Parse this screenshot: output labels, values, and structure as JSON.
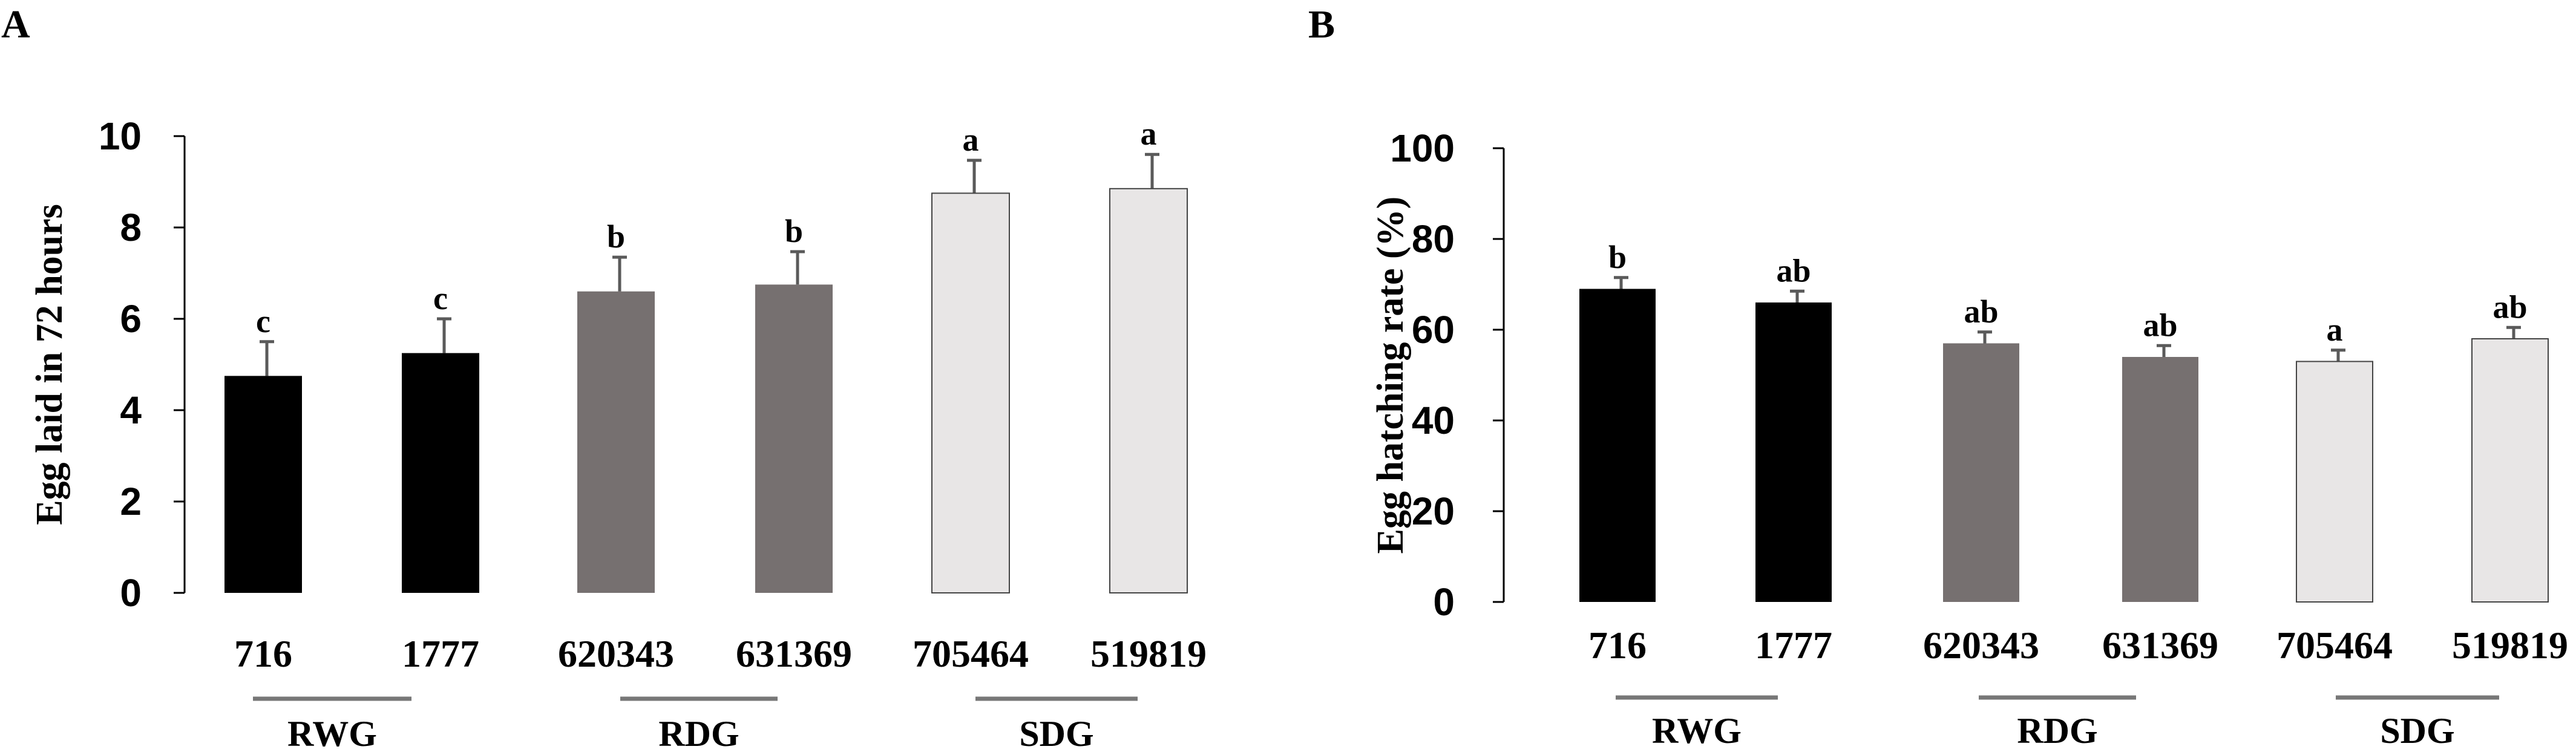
{
  "panels": [
    {
      "panel_letter": "A",
      "chart_data": {
        "type": "bar",
        "title": "",
        "xlabel": "",
        "ylabel": "Egg laid in 72 hours",
        "ylim": [
          0,
          10
        ],
        "yticks": [
          0,
          2,
          4,
          6,
          8,
          10
        ],
        "grid": false,
        "categories": [
          "716",
          "1777",
          "620343",
          "631369",
          "705464",
          "519819"
        ],
        "values": [
          4.75,
          5.25,
          6.6,
          6.75,
          8.75,
          8.85
        ],
        "errors": [
          0.75,
          0.75,
          0.75,
          0.72,
          0.72,
          0.75
        ],
        "significance": [
          "c",
          "c",
          "b",
          "b",
          "a",
          "a"
        ],
        "bar_colors": [
          "#000000",
          "#000000",
          "#767070",
          "#767070",
          "#e8e6e6",
          "#e8e6e6"
        ],
        "groups": [
          {
            "label": "RWG",
            "members": [
              "716",
              "1777"
            ]
          },
          {
            "label": "RDG",
            "members": [
              "620343",
              "631369"
            ]
          },
          {
            "label": "SDG",
            "members": [
              "705464",
              "519819"
            ]
          }
        ]
      }
    },
    {
      "panel_letter": "B",
      "chart_data": {
        "type": "bar",
        "title": "",
        "xlabel": "",
        "ylabel": "Egg hatching rate (%)",
        "ylim": [
          0,
          100
        ],
        "yticks": [
          0,
          20,
          40,
          60,
          80,
          100
        ],
        "grid": false,
        "categories": [
          "716",
          "1777",
          "620343",
          "631369",
          "705464",
          "519819"
        ],
        "values": [
          69,
          66,
          57,
          54,
          53,
          58
        ],
        "errors": [
          2.5,
          2.5,
          2.5,
          2.5,
          2.5,
          2.5
        ],
        "significance": [
          "b",
          "ab",
          "ab",
          "ab",
          "a",
          "ab"
        ],
        "bar_colors": [
          "#000000",
          "#000000",
          "#767070",
          "#767070",
          "#e8e6e6",
          "#e8e6e6"
        ],
        "groups": [
          {
            "label": "RWG",
            "members": [
              "716",
              "1777"
            ]
          },
          {
            "label": "RDG",
            "members": [
              "620343",
              "631369"
            ]
          },
          {
            "label": "SDG",
            "members": [
              "705464",
              "519819"
            ]
          }
        ]
      }
    }
  ],
  "colors": {
    "axis": "#000000",
    "error_bar": "#5a5a5a",
    "group_line": "#777777",
    "light_bar_stroke": "#444444"
  }
}
